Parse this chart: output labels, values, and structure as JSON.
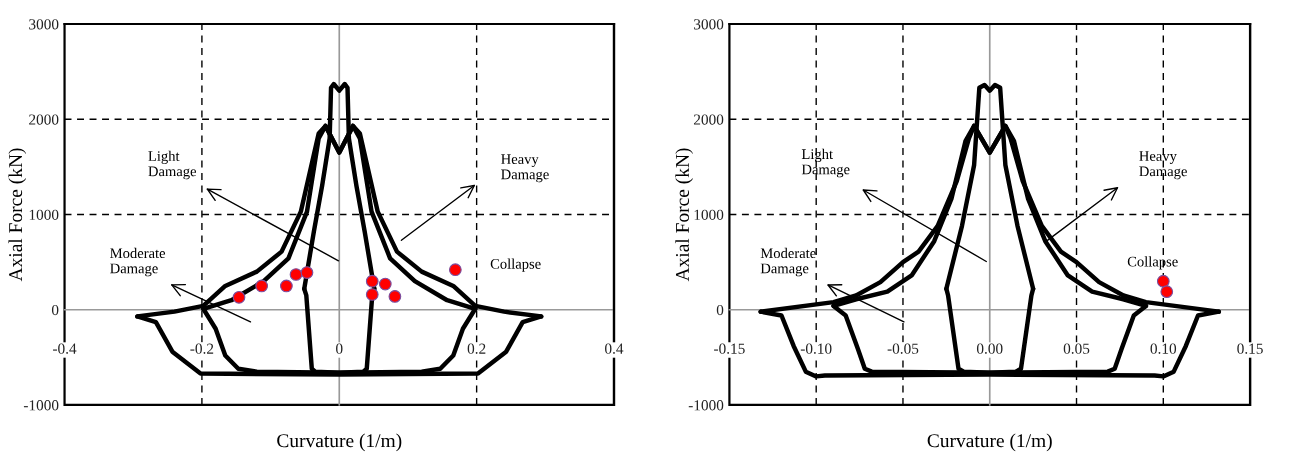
{
  "chart_data": [
    {
      "type": "line",
      "xlabel": "Curvature (1/m)",
      "ylabel": "Axial Force (kN)",
      "xlim": [
        -0.4,
        0.4
      ],
      "xticks": [
        -0.4,
        -0.2,
        0,
        0.2,
        0.4
      ],
      "ylim": [
        -1000,
        3000
      ],
      "yticks": [
        -1000,
        0,
        1000,
        2000,
        3000
      ],
      "grid": true,
      "series": [
        {
          "color": "#000000",
          "x": [
            -0.294,
            -0.24,
            -0.198,
            -0.166,
            -0.12,
            -0.084,
            -0.056,
            -0.03,
            -0.02,
            0,
            0.02,
            0.03,
            0.056,
            0.084,
            0.12,
            0.166,
            0.198,
            0.24,
            0.294
          ],
          "values": [
            -70,
            -20,
            40,
            250,
            400,
            610,
            1030,
            1850,
            1930,
            1650,
            1930,
            1850,
            1030,
            610,
            400,
            250,
            40,
            -20,
            -70
          ]
        },
        {
          "color": "#000000",
          "x": [
            -0.294,
            -0.267,
            -0.243,
            -0.202,
            0,
            0.202,
            0.243,
            0.267,
            0.294
          ],
          "values": [
            -70,
            -130,
            -440,
            -670,
            -680,
            -670,
            -440,
            -130,
            -70
          ]
        },
        {
          "color": "#000000",
          "x": [
            -0.198,
            -0.157,
            -0.11,
            -0.074,
            -0.047,
            -0.03,
            -0.02,
            0,
            0.02,
            0.03,
            0.047,
            0.074,
            0.11,
            0.157,
            0.198
          ],
          "values": [
            10,
            100,
            300,
            540,
            1030,
            1800,
            1930,
            1650,
            1930,
            1800,
            1030,
            540,
            300,
            100,
            10
          ]
        },
        {
          "color": "#000000",
          "x": [
            -0.198,
            -0.18,
            -0.166,
            -0.147,
            -0.12,
            0,
            0.12,
            0.147,
            0.166,
            0.18,
            0.198
          ],
          "values": [
            10,
            -200,
            -480,
            -620,
            -650,
            -660,
            -650,
            -620,
            -480,
            -200,
            10
          ]
        },
        {
          "color": "#000000",
          "x": [
            -0.051,
            -0.037,
            -0.025,
            -0.014,
            -0.012,
            -0.008,
            0,
            0.008,
            0.012,
            0.014,
            0.025,
            0.037,
            0.051
          ],
          "values": [
            220,
            820,
            1300,
            1800,
            2330,
            2370,
            2300,
            2370,
            2330,
            1800,
            1300,
            820,
            220
          ]
        },
        {
          "color": "#000000",
          "x": [
            -0.051,
            -0.048,
            -0.04,
            -0.035,
            0,
            0.035,
            0.04,
            0.048,
            0.051
          ],
          "values": [
            220,
            150,
            -620,
            -650,
            -660,
            -650,
            -620,
            150,
            220
          ]
        },
        {
          "type": "scatter",
          "color": "#ff0000",
          "marker": "circle",
          "x": [
            -0.146,
            -0.113,
            -0.077,
            -0.063,
            -0.047,
            0.048,
            0.048,
            0.067,
            0.081,
            0.169
          ],
          "values": [
            130,
            250,
            250,
            370,
            390,
            300,
            160,
            270,
            140,
            420
          ]
        }
      ],
      "annotations": [
        "Light\nDamage",
        "Moderate\nDamage",
        "Heavy\nDamage",
        "Collapse"
      ]
    },
    {
      "type": "line",
      "xlabel": "Curvature (1/m)",
      "ylabel": "Axial Force (kN)",
      "xlim": [
        -0.15,
        0.15
      ],
      "xticks": [
        {
          "value": -0.15,
          "label": "-0.15"
        },
        {
          "value": -0.1,
          "label": "-0.10"
        },
        {
          "value": -0.05,
          "label": "-0.05"
        },
        {
          "value": 0,
          "label": "0.00"
        },
        {
          "value": 0.05,
          "label": "0.05"
        },
        {
          "value": 0.1,
          "label": "0.10"
        },
        {
          "value": 0.15,
          "label": "0.15"
        }
      ],
      "ylim": [
        -1000,
        3000
      ],
      "yticks": [
        -1000,
        0,
        1000,
        2000,
        3000
      ],
      "grid": true,
      "series": [
        {
          "color": "#000000",
          "x": [
            -0.132,
            -0.09,
            -0.077,
            -0.063,
            -0.05,
            -0.041,
            -0.03,
            -0.019,
            -0.012,
            -0.009,
            0,
            0.009,
            0.012,
            0.019,
            0.03,
            0.041,
            0.05,
            0.063,
            0.077,
            0.09,
            0.132
          ],
          "values": [
            -20,
            80,
            150,
            290,
            500,
            610,
            880,
            1350,
            1800,
            1930,
            1650,
            1930,
            1800,
            1350,
            880,
            610,
            500,
            290,
            150,
            80,
            -20
          ]
        },
        {
          "color": "#000000",
          "x": [
            -0.132,
            -0.12,
            -0.113,
            -0.106,
            -0.1,
            -0.095,
            0,
            0.095,
            0.1,
            0.106,
            0.113,
            0.12,
            0.132
          ],
          "values": [
            -20,
            -60,
            -380,
            -650,
            -700,
            -690,
            -680,
            -690,
            -700,
            -650,
            -380,
            -60,
            -20
          ]
        },
        {
          "color": "#000000",
          "x": [
            -0.09,
            -0.077,
            -0.059,
            -0.045,
            -0.032,
            -0.022,
            -0.014,
            -0.009,
            0,
            0.009,
            0.014,
            0.022,
            0.032,
            0.045,
            0.059,
            0.077,
            0.09
          ],
          "values": [
            40,
            110,
            190,
            360,
            720,
            1170,
            1770,
            1930,
            1650,
            1930,
            1770,
            1170,
            720,
            360,
            190,
            110,
            40
          ]
        },
        {
          "color": "#000000",
          "x": [
            -0.09,
            -0.083,
            -0.076,
            -0.072,
            -0.068,
            0,
            0.068,
            0.072,
            0.076,
            0.083,
            0.09
          ],
          "values": [
            40,
            -60,
            -410,
            -620,
            -650,
            -660,
            -650,
            -620,
            -410,
            -60,
            40
          ]
        },
        {
          "color": "#000000",
          "x": [
            -0.025,
            -0.016,
            -0.009,
            -0.006,
            -0.003,
            0,
            0.003,
            0.006,
            0.009,
            0.016,
            0.025
          ],
          "values": [
            220,
            880,
            1520,
            2330,
            2360,
            2300,
            2360,
            2330,
            1520,
            880,
            220
          ]
        },
        {
          "color": "#000000",
          "x": [
            -0.025,
            -0.024,
            -0.018,
            -0.015,
            0,
            0.015,
            0.018,
            0.024,
            0.025
          ],
          "values": [
            220,
            150,
            -620,
            -650,
            -660,
            -650,
            -620,
            150,
            220
          ]
        },
        {
          "type": "scatter",
          "color": "#ff0000",
          "marker": "circle",
          "x": [
            0.1,
            0.102
          ],
          "values": [
            300,
            190
          ]
        }
      ],
      "annotations": [
        "Light\nDamage",
        "Moderate\nDamage",
        "Heavy\nDamage",
        "Collapse"
      ]
    }
  ]
}
